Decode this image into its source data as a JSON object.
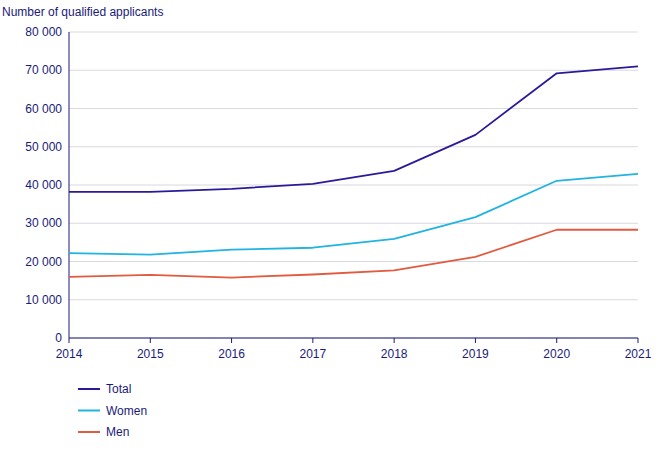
{
  "chart_data": {
    "type": "line",
    "y_label": "Number of qualified applicants",
    "x": [
      2014,
      2015,
      2016,
      2017,
      2018,
      2019,
      2020,
      2021
    ],
    "xlim": [
      2014,
      2021
    ],
    "xticks": [
      2014,
      2015,
      2016,
      2017,
      2018,
      2019,
      2020,
      2021
    ],
    "ylim": [
      0,
      80000
    ],
    "yticks": [
      0,
      {
        "value": 10000,
        "label": "10 000"
      },
      {
        "value": 20000,
        "label": "20 000"
      },
      {
        "value": 30000,
        "label": "30 000"
      },
      {
        "value": 40000,
        "label": "40 000"
      },
      {
        "value": 50000,
        "label": "50 000"
      },
      {
        "value": 60000,
        "label": "60 000"
      },
      {
        "value": 70000,
        "label": "70 000"
      },
      {
        "value": 80000,
        "label": "80 000"
      }
    ],
    "grid": true,
    "legend": "bottom",
    "series": [
      {
        "name": "Total",
        "color": "#2a1a9a",
        "values": [
          38200,
          38200,
          39000,
          40300,
          43700,
          53100,
          69200,
          71000
        ]
      },
      {
        "name": "Women",
        "color": "#1fb4e2",
        "values": [
          22200,
          21800,
          23100,
          23600,
          25900,
          31600,
          41100,
          42900
        ]
      },
      {
        "name": "Men",
        "color": "#e25a3f",
        "values": [
          16000,
          16500,
          15800,
          16600,
          17700,
          21200,
          28300,
          28300
        ]
      }
    ]
  }
}
